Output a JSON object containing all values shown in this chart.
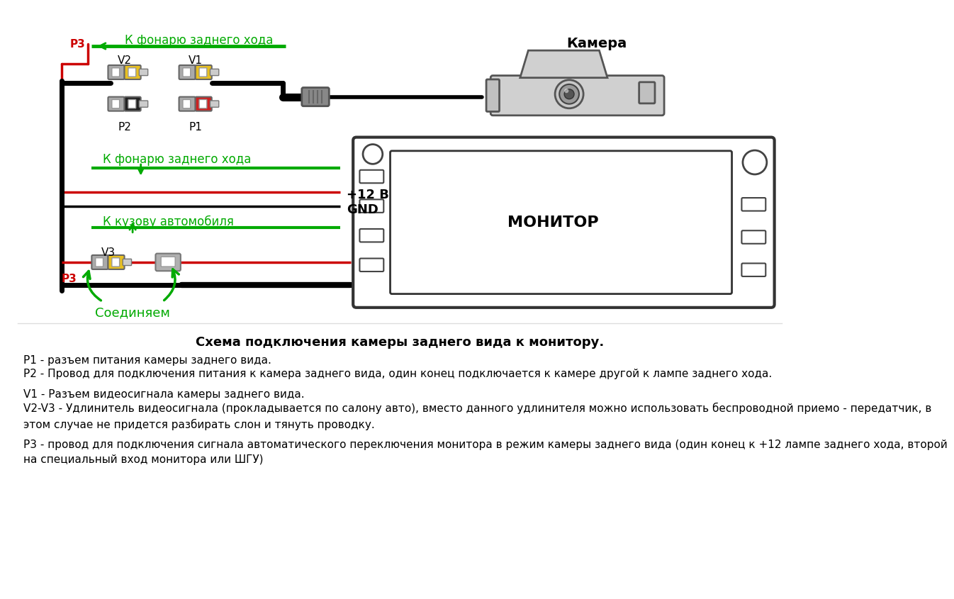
{
  "bg_color": "#ffffff",
  "title_text": "Схема подключения камеры заднего вида к монитору.",
  "camera_label": "Камера",
  "monitor_label": "МОНИТОР",
  "label_k_fonarju_top": "К фонарю заднего хода",
  "label_k_fonarju_mid": "К фонарю заднего хода",
  "label_k_kuzovu": "К кузову автомобиля",
  "label_soedinjaem": "Соединяем",
  "label_12v": "+12 В",
  "label_gnd": "GND",
  "label_p1": "P1",
  "label_p2": "P2",
  "label_p3_top": "P3",
  "label_p3_bot": "P3",
  "label_v1": "V1",
  "label_v2": "V2",
  "label_v3": "V3",
  "green_color": "#00aa00",
  "red_color": "#cc0000",
  "black_color": "#000000",
  "yellow_color": "#e8c020",
  "gray_color": "#aaaaaa",
  "dark_gray": "#555555",
  "text_color": "#000000",
  "line1_p1": "P1 - разъем питания камеры заднего вида.",
  "line1_p2": "P2 - Провод для подключения питания к камера заднего вида, один конец подключается к камере другой к лампе заднего хода.",
  "line1_v1": "V1 - Разъем видеосигнала камеры заднего вида.",
  "line1_v2v3": "V2-V3 - Удлинитель видеосигнала (прокладывается по салону авто), вместо данного удлинителя можно использовать беспроводной приемо - передатчик, в\nэтом случае не придется разбирать слон и тянуть проводку.",
  "line1_p3": "P3 - провод для подключения сигнала автоматического переключения монитора в режим камеры заднего вида (один конец к +12 лампе заднего хода, второй\nна специальный вход монитора или ШГУ)"
}
